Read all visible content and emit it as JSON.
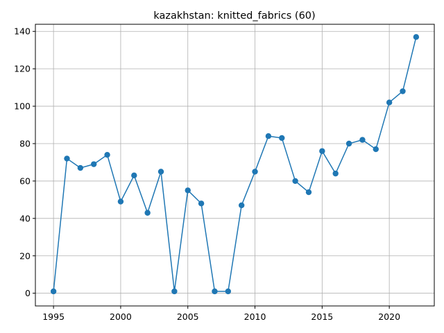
{
  "chart_data": {
    "type": "line",
    "title": "kazakhstan: knitted_fabrics (60)",
    "xlabel": "",
    "ylabel": "",
    "x": [
      1995,
      1996,
      1997,
      1998,
      1999,
      2000,
      2001,
      2002,
      2003,
      2004,
      2005,
      2006,
      2007,
      2008,
      2009,
      2010,
      2011,
      2012,
      2013,
      2014,
      2015,
      2016,
      2017,
      2018,
      2019,
      2020,
      2021,
      2022
    ],
    "series": [
      {
        "color": "#1f77b4",
        "marker": "circle",
        "values": [
          1,
          72,
          67,
          69,
          74,
          49,
          63,
          43,
          65,
          1,
          55,
          48,
          1,
          1,
          47,
          65,
          84,
          83,
          60,
          54,
          76,
          64,
          80,
          82,
          77,
          102,
          108,
          137
        ]
      }
    ],
    "xlim": [
      1993.65,
      2023.35
    ],
    "ylim": [
      -6.8,
      143.8
    ],
    "xticks": [
      1995,
      2000,
      2005,
      2010,
      2015,
      2020
    ],
    "yticks": [
      0,
      20,
      40,
      60,
      80,
      100,
      120,
      140
    ],
    "grid": true,
    "legend": "none"
  }
}
